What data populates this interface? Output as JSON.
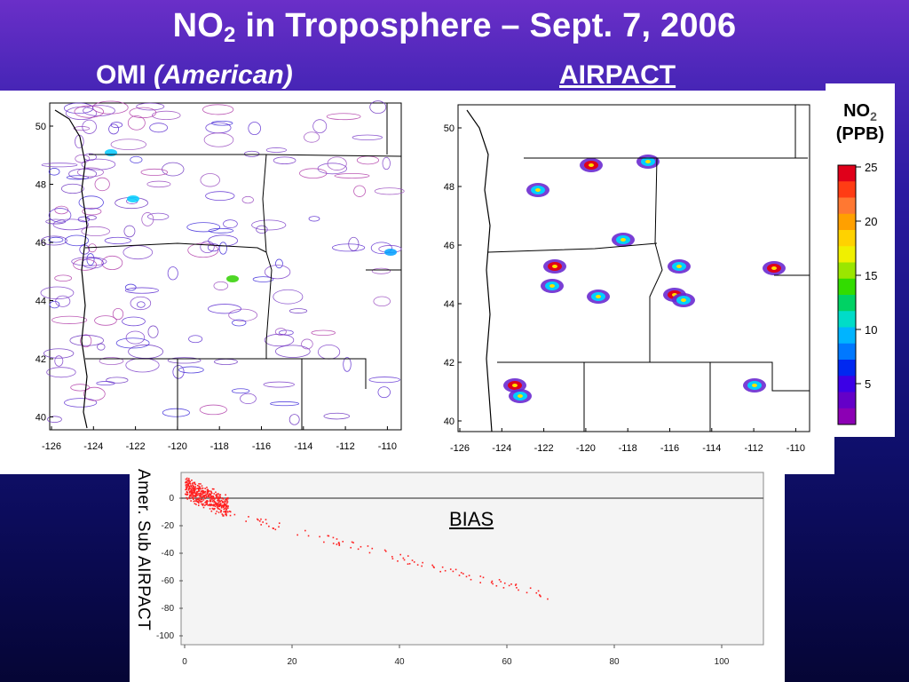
{
  "title": {
    "main_prefix": "NO",
    "main_sub": "2",
    "main_suffix": " in Troposphere – Sept. 7, 2006"
  },
  "headers": {
    "omi": "OMI ",
    "omi_italic": "(American)",
    "airpact": "AIRPACT"
  },
  "maps": {
    "y_ticks": [
      "50",
      "48",
      "46",
      "44",
      "42",
      "40"
    ],
    "x_ticks": [
      "-126",
      "-124",
      "-122",
      "-120",
      "-118",
      "-116",
      "-114",
      "-112",
      "-110"
    ]
  },
  "legend": {
    "title_prefix": "NO",
    "title_sub": "2",
    "units": "(PPB)",
    "labels": [
      "25",
      "20",
      "15",
      "10",
      "5"
    ],
    "colors": [
      "#e0001a",
      "#ff3c14",
      "#ff7832",
      "#ffa000",
      "#ffd200",
      "#f0f000",
      "#9be600",
      "#32dc00",
      "#00d264",
      "#00dcc8",
      "#00b4ff",
      "#0078ff",
      "#0028f0",
      "#3c00e6",
      "#6400c8",
      "#8c00b4"
    ]
  },
  "scatter": {
    "ylabel": "Amer. Sub AIRPACT",
    "annotation": "BIAS",
    "y_ticks": [
      "0",
      "-20",
      "-40",
      "-60",
      "-80",
      "-100"
    ],
    "x_ticks": [
      "0",
      "20",
      "40",
      "60",
      "80",
      "100"
    ],
    "point_color": "#ff2020"
  }
}
